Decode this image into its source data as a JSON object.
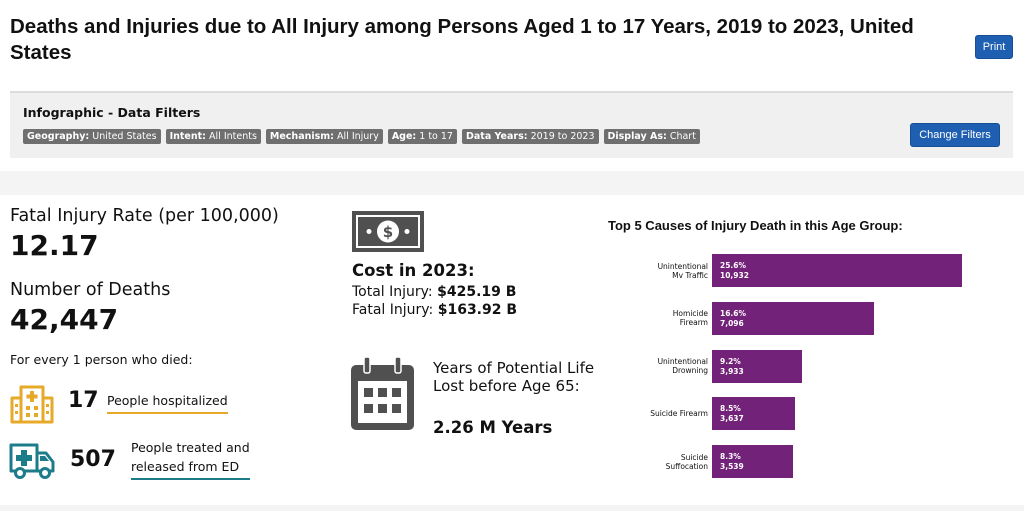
{
  "header": {
    "title": "Deaths and Injuries due to All Injury among Persons Aged 1 to 17 Years, 2019 to 2023, United States",
    "print_label": "Print"
  },
  "filters": {
    "title": "Infographic - Data Filters",
    "chips": [
      {
        "key": "Geography:",
        "value": "United States"
      },
      {
        "key": "Intent:",
        "value": "All Intents"
      },
      {
        "key": "Mechanism:",
        "value": "All Injury"
      },
      {
        "key": "Age:",
        "value": "1 to 17"
      },
      {
        "key": "Data Years:",
        "value": "2019 to 2023"
      },
      {
        "key": "Display As:",
        "value": "Chart"
      }
    ],
    "change_label": "Change Filters"
  },
  "stats": {
    "rate_label": "Fatal Injury Rate (per 100,000)",
    "rate_value": "12.17",
    "deaths_label": "Number of Deaths",
    "deaths_value": "42,447",
    "per_person_text": "For every 1 person who died:",
    "hospitalized_num": "17",
    "hospitalized_label": "People hospitalized",
    "ed_num": "507",
    "ed_label_line1": "People treated and",
    "ed_label_line2": "released from ED"
  },
  "cost": {
    "title": "Cost in 2023:",
    "total_label": "Total Injury:",
    "total_value": "$425.19 B",
    "fatal_label": "Fatal Injury:",
    "fatal_value": "$163.92 B"
  },
  "ypll": {
    "text": "Years of Potential Life Lost before Age 65:",
    "value": "2.26 M Years"
  },
  "colors": {
    "bar": "#722278",
    "button": "#1f5fb1",
    "hospital_icon": "#e7a928",
    "ambulance_icon": "#1d7c8a"
  },
  "chart_data": {
    "type": "bar",
    "orientation": "horizontal",
    "title": "Top 5 Causes of Injury Death in this Age Group:",
    "categories": [
      [
        "Unintentional",
        "Mv Traffic"
      ],
      [
        "Homicide",
        "Firearm"
      ],
      [
        "Unintentional",
        "Drowning"
      ],
      [
        "Suicide Firearm"
      ],
      [
        "Suicide",
        "Suffocation"
      ]
    ],
    "percent_labels": [
      "25.6%",
      "16.6%",
      "9.2%",
      "8.5%",
      "8.3%"
    ],
    "count_labels": [
      "10,932",
      "7,096",
      "3,933",
      "3,637",
      "3,539"
    ],
    "values": [
      10932,
      7096,
      3933,
      3637,
      3539
    ]
  }
}
